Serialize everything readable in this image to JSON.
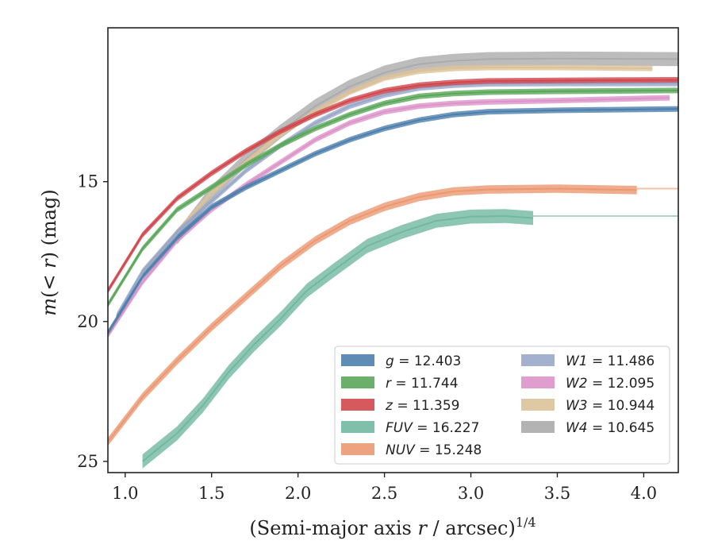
{
  "chart_data": {
    "type": "line",
    "xlabel_prefix": "(Semi-major axis ",
    "xlabel_var": "r",
    "xlabel_suffix": " / arcsec)",
    "xlabel_exp": "1/4",
    "ylabel_m": "m",
    "ylabel_inner": "(< ",
    "ylabel_r": "r",
    "ylabel_close": ")",
    "ylabel_unit": "(mag)",
    "xlim": [
      0.9,
      4.2
    ],
    "ylim": [
      25.4,
      9.5
    ],
    "y_inverted": true,
    "xticks": [
      1.0,
      1.5,
      2.0,
      2.5,
      3.0,
      3.5,
      4.0
    ],
    "xtick_labels": [
      "1.0",
      "1.5",
      "2.0",
      "2.5",
      "3.0",
      "3.5",
      "4.0"
    ],
    "yticks": [
      15,
      20,
      25
    ],
    "ytick_labels": [
      "15",
      "20",
      "25"
    ],
    "grid": false,
    "legend_placement": "lower-right",
    "series": [
      {
        "name": "g",
        "band_label": "g",
        "value_label": " = 12.403",
        "color": "#4c7fad",
        "band_width": 0.1,
        "x": [
          0.9,
          1.1,
          1.3,
          1.5,
          1.7,
          1.9,
          2.1,
          2.3,
          2.5,
          2.7,
          2.9,
          3.1,
          3.5,
          4.2
        ],
        "y": [
          20.4,
          18.4,
          17.0,
          15.9,
          15.2,
          14.6,
          14.0,
          13.5,
          13.1,
          12.8,
          12.6,
          12.5,
          12.45,
          12.4
        ]
      },
      {
        "name": "r",
        "band_label": "r",
        "value_label": " = 11.744",
        "color": "#5aa75a",
        "band_width": 0.1,
        "x": [
          0.9,
          1.1,
          1.3,
          1.5,
          1.7,
          1.9,
          2.1,
          2.3,
          2.5,
          2.7,
          2.9,
          3.1,
          3.5,
          4.2
        ],
        "y": [
          19.4,
          17.4,
          16.0,
          15.2,
          14.4,
          13.7,
          13.1,
          12.6,
          12.2,
          11.95,
          11.85,
          11.8,
          11.77,
          11.74
        ]
      },
      {
        "name": "z",
        "band_label": "z",
        "value_label": " = 11.359",
        "color": "#d1474d",
        "band_width": 0.1,
        "x": [
          0.9,
          1.1,
          1.3,
          1.5,
          1.7,
          1.9,
          2.1,
          2.3,
          2.5,
          2.7,
          2.9,
          3.1,
          3.5,
          4.2
        ],
        "y": [
          18.9,
          16.9,
          15.6,
          14.7,
          13.9,
          13.2,
          12.6,
          12.1,
          11.75,
          11.55,
          11.45,
          11.4,
          11.38,
          11.36
        ]
      },
      {
        "name": "FUV",
        "band_label": "FUV",
        "value_label": " = 16.227",
        "color": "#72b8a1",
        "band_width": 0.25,
        "x": [
          1.1,
          1.3,
          1.45,
          1.6,
          1.75,
          1.9,
          2.05,
          2.2,
          2.4,
          2.6,
          2.8,
          3.0,
          3.2,
          3.36
        ],
        "y": [
          25.0,
          24.0,
          23.0,
          21.8,
          20.8,
          19.9,
          18.9,
          18.2,
          17.3,
          16.8,
          16.4,
          16.25,
          16.23,
          16.3
        ]
      },
      {
        "name": "NUV",
        "band_label": "NUV",
        "value_label": " = 15.248",
        "color": "#eb9872",
        "band_width": 0.15,
        "x": [
          0.9,
          1.1,
          1.3,
          1.5,
          1.7,
          1.9,
          2.1,
          2.3,
          2.5,
          2.7,
          2.9,
          3.1,
          3.5,
          3.96
        ],
        "y": [
          24.3,
          22.7,
          21.4,
          20.2,
          19.1,
          18.0,
          17.1,
          16.4,
          15.9,
          15.55,
          15.35,
          15.28,
          15.25,
          15.3
        ]
      },
      {
        "name": "W1",
        "band_label": "W1",
        "value_label": " = 11.486",
        "color": "#99a8c9",
        "band_width": 0.1,
        "x": [
          0.95,
          1.1,
          1.3,
          1.5,
          1.7,
          1.9,
          2.1,
          2.3,
          2.5,
          2.7,
          2.9,
          3.1,
          3.5,
          4.2
        ],
        "y": [
          19.8,
          18.2,
          16.8,
          15.7,
          14.6,
          13.7,
          12.9,
          12.3,
          11.9,
          11.65,
          11.55,
          11.5,
          11.49,
          11.49
        ]
      },
      {
        "name": "W2",
        "band_label": "W2",
        "value_label": " = 12.095",
        "color": "#dc94c9",
        "band_width": 0.1,
        "x": [
          0.9,
          1.1,
          1.3,
          1.5,
          1.7,
          1.9,
          2.1,
          2.3,
          2.5,
          2.7,
          2.9,
          3.1,
          3.5,
          4.15
        ],
        "y": [
          20.5,
          18.6,
          17.1,
          16.0,
          15.1,
          14.3,
          13.5,
          12.9,
          12.5,
          12.3,
          12.2,
          12.15,
          12.1,
          12.0
        ]
      },
      {
        "name": "W3",
        "band_label": "W3",
        "value_label": " = 10.944",
        "color": "#dcc29a",
        "band_width": 0.1,
        "x": [
          1.1,
          1.3,
          1.5,
          1.7,
          1.9,
          2.1,
          2.3,
          2.5,
          2.7,
          2.9,
          3.1,
          3.5,
          4.05
        ],
        "y": [
          18.3,
          16.8,
          15.4,
          14.3,
          13.3,
          12.5,
          11.8,
          11.3,
          11.05,
          10.95,
          10.92,
          10.92,
          10.95
        ]
      },
      {
        "name": "W4",
        "band_label": "W4",
        "value_label": " = 10.645",
        "color": "#ababab",
        "band_width": 0.25,
        "x": [
          1.3,
          1.5,
          1.7,
          1.9,
          2.1,
          2.3,
          2.5,
          2.7,
          2.9,
          3.1,
          3.5,
          4.2
        ],
        "y": [
          17.0,
          15.4,
          14.2,
          13.2,
          12.3,
          11.6,
          11.1,
          10.8,
          10.68,
          10.62,
          10.6,
          10.62
        ]
      }
    ],
    "extensions": [
      {
        "name": "FUV",
        "x": [
          3.36,
          4.2
        ],
        "y": [
          16.23,
          16.23
        ]
      },
      {
        "name": "NUV",
        "x": [
          3.96,
          4.2
        ],
        "y": [
          15.25,
          15.25
        ]
      }
    ]
  }
}
